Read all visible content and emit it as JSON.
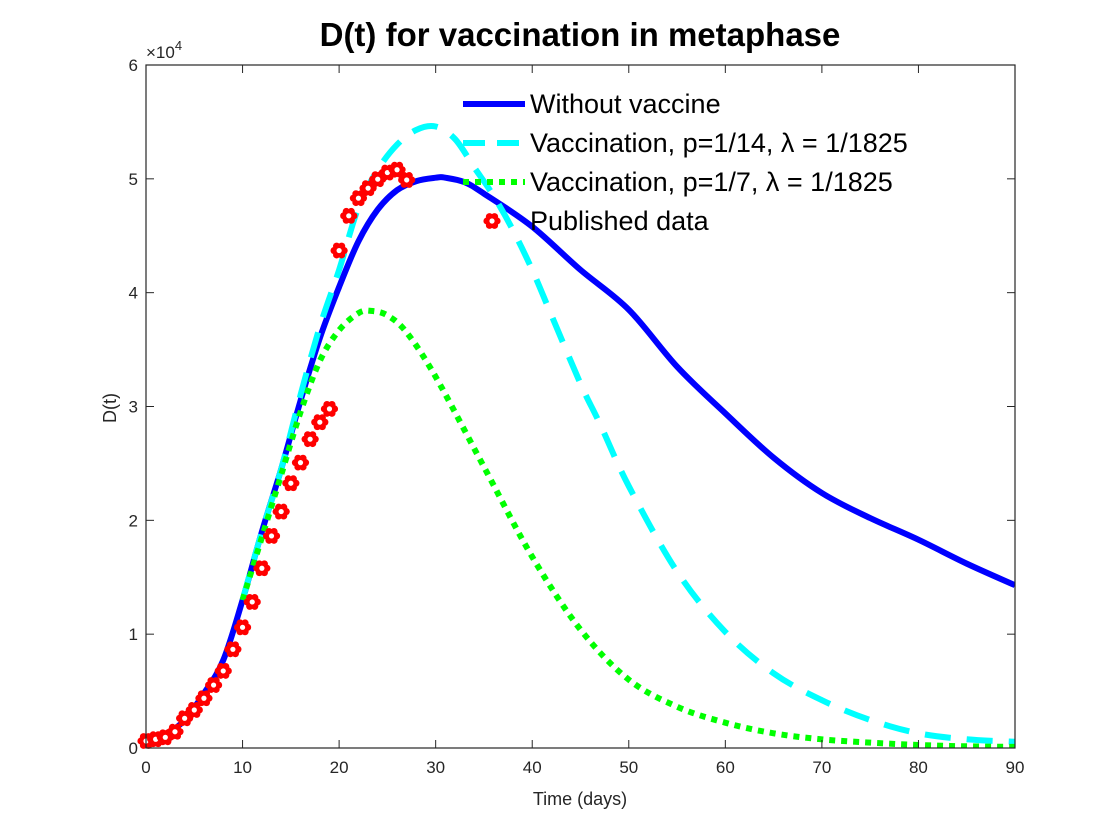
{
  "chart_data": {
    "type": "line",
    "title": "D(t) for vaccination in metaphase",
    "xlabel": "Time (days)",
    "ylabel": "D(t)",
    "xlim": [
      0,
      90
    ],
    "ylim": [
      0,
      60000
    ],
    "xticks": [
      0,
      10,
      20,
      30,
      40,
      50,
      60,
      70,
      80,
      90
    ],
    "xtick_labels": [
      "0",
      "10",
      "20",
      "30",
      "40",
      "50",
      "60",
      "70",
      "80",
      "90"
    ],
    "yticks": [
      0,
      10000,
      20000,
      30000,
      40000,
      50000,
      60000
    ],
    "ytick_labels": [
      "0",
      "1",
      "2",
      "3",
      "4",
      "5",
      "6"
    ],
    "y_exponent_label": {
      "base": "×10",
      "exp": "4"
    },
    "grid": false,
    "legend_position": "top-right",
    "series": [
      {
        "name": "Without vaccine",
        "style": "solid",
        "color": "#0000FF",
        "x": [
          0,
          2,
          4,
          6,
          8,
          10,
          12,
          14,
          16,
          18,
          20,
          22,
          24,
          26,
          28,
          30,
          31,
          33,
          35,
          40,
          45,
          50,
          55,
          60,
          65,
          70,
          75,
          80,
          85,
          90
        ],
        "y": [
          550,
          1140,
          2460,
          4800,
          7700,
          13000,
          19000,
          24500,
          30500,
          36000,
          40500,
          44500,
          47300,
          49000,
          49800,
          50100,
          50100,
          49700,
          48700,
          45800,
          42000,
          38500,
          33500,
          29400,
          25500,
          22400,
          20200,
          18300,
          16200,
          14300
        ]
      },
      {
        "name": "Vaccination, p=1/14, λ = 1/1825",
        "style": "dashed",
        "color": "#00FFFF",
        "x": [
          10,
          12,
          14,
          16,
          18,
          20,
          22,
          24,
          26,
          28,
          30,
          32,
          34,
          36,
          38,
          40,
          42,
          45,
          47,
          50,
          55,
          60,
          65,
          70,
          75,
          80,
          85,
          90
        ],
        "y": [
          13000,
          19000,
          24500,
          31000,
          37000,
          42000,
          47500,
          50800,
          53000,
          54300,
          54600,
          53500,
          51000,
          48500,
          45500,
          42000,
          38000,
          32000,
          28500,
          23000,
          15500,
          10200,
          6560,
          4200,
          2460,
          1290,
          760,
          550
        ]
      },
      {
        "name": "Vaccination, p=1/7, λ = 1/1825",
        "style": "dotted",
        "color": "#00FF00",
        "x": [
          10,
          12,
          14,
          16,
          18,
          20,
          22,
          23.3,
          25,
          27,
          30,
          35,
          40,
          45,
          50,
          55,
          60,
          65,
          70,
          75,
          80,
          85,
          90
        ],
        "y": [
          13000,
          18500,
          24000,
          29500,
          34000,
          36700,
          38200,
          38400,
          38000,
          36500,
          32600,
          24700,
          16800,
          10400,
          6000,
          3630,
          2220,
          1290,
          760,
          470,
          260,
          150,
          100
        ]
      },
      {
        "name": "Published data",
        "style": "markers",
        "color": "#FF0000",
        "marker": "flower",
        "x": [
          0,
          1,
          2,
          3,
          4,
          5,
          6,
          7,
          8,
          9,
          10,
          11,
          12,
          13,
          14,
          15,
          16,
          17,
          18,
          19,
          20,
          21,
          22,
          23,
          24,
          25,
          26,
          27
        ],
        "y": [
          615,
          770,
          940,
          1430,
          2610,
          3340,
          4370,
          5530,
          6770,
          8670,
          10600,
          12830,
          15790,
          18630,
          20770,
          23260,
          25070,
          27130,
          28620,
          29790,
          43700,
          46750,
          48300,
          49180,
          49970,
          50550,
          50800,
          49900
        ]
      }
    ]
  }
}
